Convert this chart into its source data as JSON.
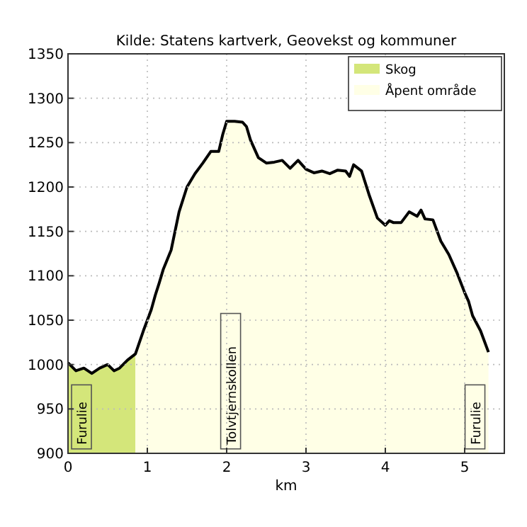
{
  "chart_data": {
    "type": "area",
    "title": "Kilde: Statens kartverk, Geovekst og kommuner",
    "xlabel": "km",
    "xlim": [
      0,
      5.5
    ],
    "xticks": [
      0,
      1,
      2,
      3,
      4,
      5
    ],
    "ylim": [
      900,
      1350
    ],
    "yticks": [
      900,
      950,
      1000,
      1050,
      1100,
      1150,
      1200,
      1250,
      1300,
      1350
    ],
    "grid": true,
    "legend": "top right",
    "series": [
      {
        "name": "Skog",
        "color": "#d4e67a",
        "x": [
          0,
          0.1,
          0.2,
          0.3,
          0.4,
          0.5,
          0.58,
          0.65,
          0.75,
          0.85
        ],
        "values": [
          1002,
          993,
          996,
          990,
          996,
          1000,
          993,
          996,
          1005,
          1012
        ]
      },
      {
        "name": "Åpent område",
        "color": "#ffffe6",
        "x": [
          0.85,
          0.95,
          1,
          1.05,
          1.1,
          1.15,
          1.2,
          1.3,
          1.4,
          1.5,
          1.6,
          1.7,
          1.8,
          1.9,
          1.95,
          2,
          2.1,
          2.2,
          2.25,
          2.3,
          2.4,
          2.5,
          2.6,
          2.7,
          2.8,
          2.9,
          3,
          3.1,
          3.2,
          3.3,
          3.4,
          3.5,
          3.55,
          3.6,
          3.7,
          3.8,
          3.9,
          4,
          4.05,
          4.1,
          4.2,
          4.3,
          4.4,
          4.45,
          4.5,
          4.6,
          4.7,
          4.8,
          4.9,
          5,
          5.05,
          5.1,
          5.2,
          5.3
        ],
        "values": [
          1012,
          1038,
          1050,
          1062,
          1078,
          1092,
          1107,
          1129,
          1172,
          1200,
          1215,
          1227,
          1240,
          1240,
          1259,
          1274,
          1274,
          1273,
          1268,
          1253,
          1233,
          1227,
          1228,
          1230,
          1221,
          1230,
          1220,
          1216,
          1218,
          1215,
          1219,
          1218,
          1212,
          1225,
          1218,
          1190,
          1165,
          1157,
          1162,
          1160,
          1160,
          1172,
          1167,
          1174,
          1164,
          1163,
          1139,
          1124,
          1104,
          1081,
          1071,
          1055,
          1038,
          1014
        ]
      },
      {
        "type": "line",
        "color": "#000000",
        "x": [
          0,
          0.1,
          0.2,
          0.3,
          0.4,
          0.5,
          0.58,
          0.65,
          0.75,
          0.85,
          0.95,
          1,
          1.05,
          1.1,
          1.15,
          1.2,
          1.3,
          1.4,
          1.5,
          1.6,
          1.7,
          1.8,
          1.9,
          1.95,
          2,
          2.1,
          2.2,
          2.25,
          2.3,
          2.4,
          2.5,
          2.6,
          2.7,
          2.8,
          2.9,
          3,
          3.1,
          3.2,
          3.3,
          3.4,
          3.5,
          3.55,
          3.6,
          3.7,
          3.8,
          3.9,
          4,
          4.05,
          4.1,
          4.2,
          4.3,
          4.4,
          4.45,
          4.5,
          4.6,
          4.7,
          4.8,
          4.9,
          5,
          5.05,
          5.1,
          5.2,
          5.3
        ],
        "values": [
          1002,
          993,
          996,
          990,
          996,
          1000,
          993,
          996,
          1005,
          1012,
          1038,
          1050,
          1062,
          1078,
          1092,
          1107,
          1129,
          1172,
          1200,
          1215,
          1227,
          1240,
          1240,
          1259,
          1274,
          1274,
          1273,
          1268,
          1253,
          1233,
          1227,
          1228,
          1230,
          1221,
          1230,
          1220,
          1216,
          1218,
          1215,
          1219,
          1218,
          1212,
          1225,
          1218,
          1190,
          1165,
          1157,
          1162,
          1160,
          1160,
          1172,
          1167,
          1174,
          1164,
          1163,
          1139,
          1124,
          1104,
          1081,
          1071,
          1055,
          1038,
          1014
        ]
      }
    ],
    "annotations": [
      {
        "text": "Furulie",
        "x": 0.17,
        "y": 905
      },
      {
        "text": "Tolvtjernskollen",
        "x": 2.05,
        "y": 905
      },
      {
        "text": "Furulie",
        "x": 5.13,
        "y": 905
      }
    ]
  }
}
